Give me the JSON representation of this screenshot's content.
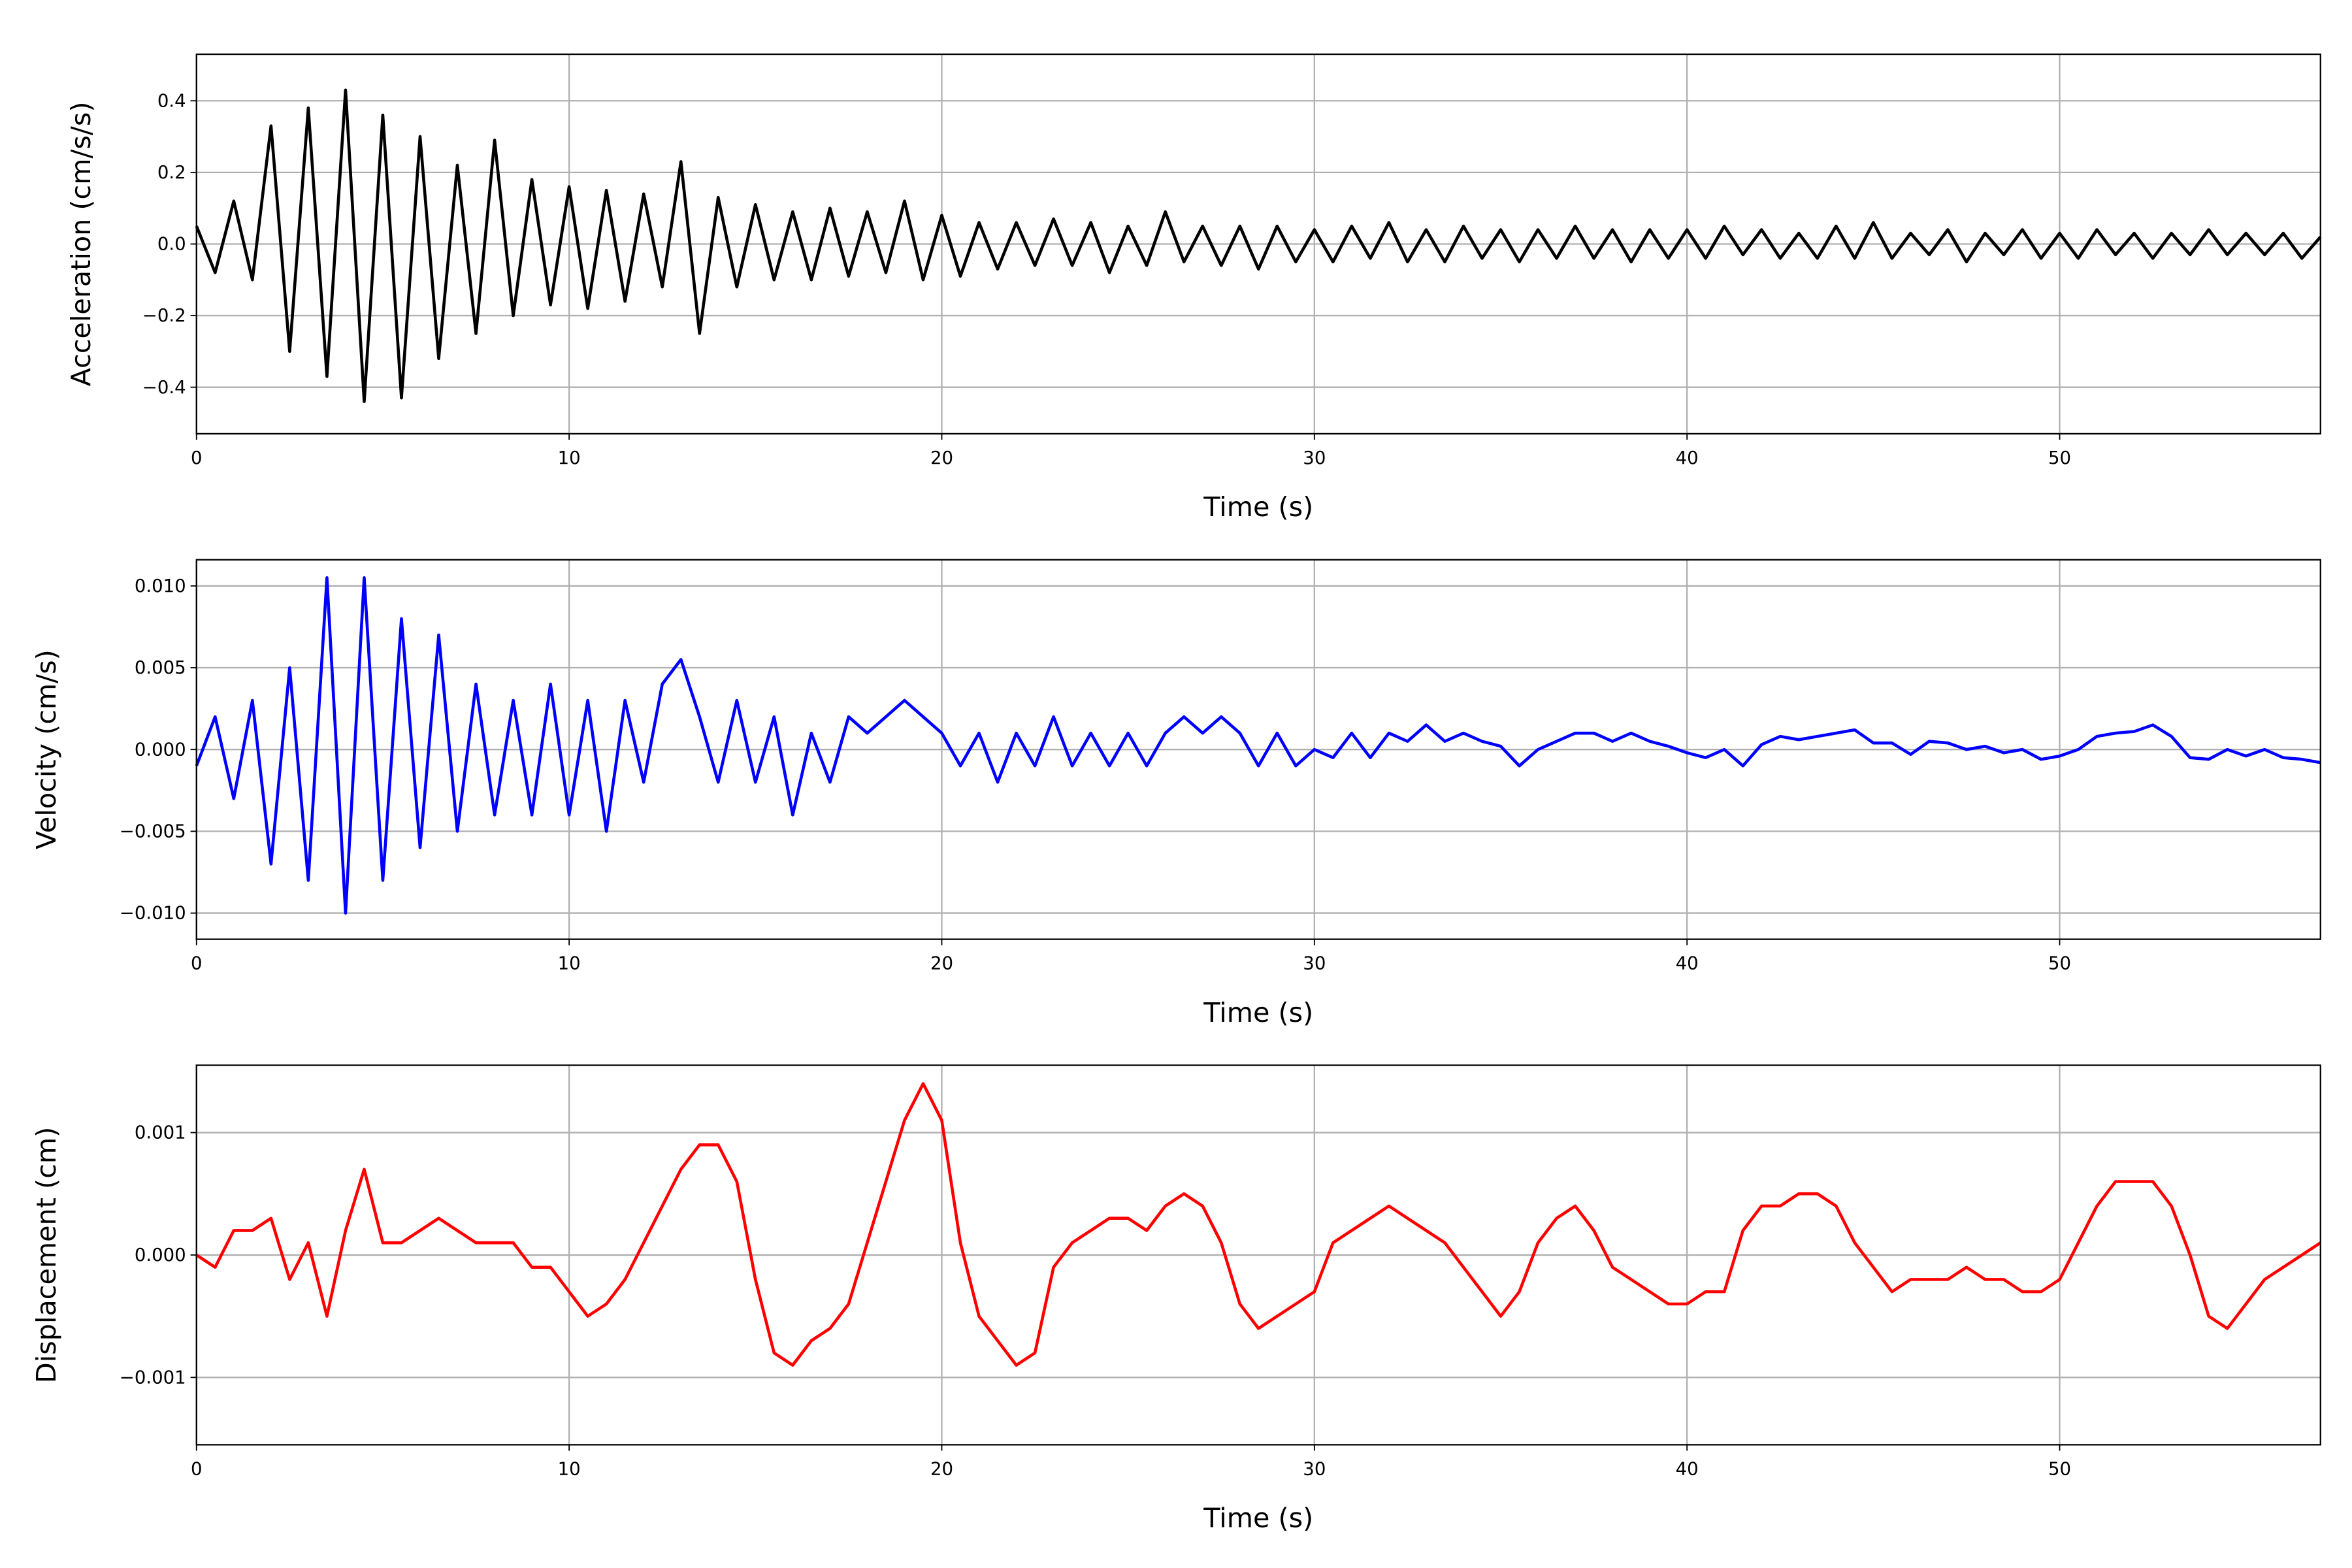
{
  "chart_data": [
    {
      "type": "line",
      "xlabel": "Time (s)",
      "ylabel": "Acceleration (cm/s/s)",
      "xlim": [
        0,
        57
      ],
      "xticks": [
        0,
        10,
        20,
        30,
        40,
        50
      ],
      "ylim": [
        -0.53,
        0.53
      ],
      "yticks": [
        {
          "value": -0.4,
          "label": "−0.4"
        },
        {
          "value": -0.2,
          "label": "−0.2"
        },
        {
          "value": 0,
          "label": "0.0"
        },
        0.2,
        0.4
      ],
      "grid": true,
      "x": [
        0,
        0.5,
        1,
        1.5,
        2,
        2.5,
        3,
        3.5,
        4,
        4.5,
        5,
        5.5,
        6,
        6.5,
        7,
        7.5,
        8,
        8.5,
        9,
        9.5,
        10,
        10.5,
        11,
        11.5,
        12,
        12.5,
        13,
        13.5,
        14,
        14.5,
        15,
        15.5,
        16,
        16.5,
        17,
        17.5,
        18,
        18.5,
        19,
        19.5,
        20,
        20.5,
        21,
        21.5,
        22,
        22.5,
        23,
        23.5,
        24,
        24.5,
        25,
        25.5,
        26,
        26.5,
        27,
        27.5,
        28,
        28.5,
        29,
        29.5,
        30,
        30.5,
        31,
        31.5,
        32,
        32.5,
        33,
        33.5,
        34,
        34.5,
        35,
        35.5,
        36,
        36.5,
        37,
        37.5,
        38,
        38.5,
        39,
        39.5,
        40,
        40.5,
        41,
        41.5,
        42,
        42.5,
        43,
        43.5,
        44,
        44.5,
        45,
        45.5,
        46,
        46.5,
        47,
        47.5,
        48,
        48.5,
        49,
        49.5,
        50,
        50.5,
        51,
        51.5,
        52,
        52.5,
        53,
        53.5,
        54,
        54.5,
        55,
        55.5,
        56,
        56.5,
        57
      ],
      "series": [
        {
          "color": "#000000",
          "values": [
            0.05,
            -0.08,
            0.12,
            -0.1,
            0.33,
            -0.3,
            0.38,
            -0.37,
            0.43,
            -0.44,
            0.36,
            -0.43,
            0.3,
            -0.32,
            0.22,
            -0.25,
            0.29,
            -0.2,
            0.18,
            -0.17,
            0.16,
            -0.18,
            0.15,
            -0.16,
            0.14,
            -0.12,
            0.23,
            -0.25,
            0.13,
            -0.12,
            0.11,
            -0.1,
            0.09,
            -0.1,
            0.1,
            -0.09,
            0.09,
            -0.08,
            0.12,
            -0.1,
            0.08,
            -0.09,
            0.06,
            -0.07,
            0.06,
            -0.06,
            0.07,
            -0.06,
            0.06,
            -0.08,
            0.05,
            -0.06,
            0.09,
            -0.05,
            0.05,
            -0.06,
            0.05,
            -0.07,
            0.05,
            -0.05,
            0.04,
            -0.05,
            0.05,
            -0.04,
            0.06,
            -0.05,
            0.04,
            -0.05,
            0.05,
            -0.04,
            0.04,
            -0.05,
            0.04,
            -0.04,
            0.05,
            -0.04,
            0.04,
            -0.05,
            0.04,
            -0.04,
            0.04,
            -0.04,
            0.05,
            -0.03,
            0.04,
            -0.04,
            0.03,
            -0.04,
            0.05,
            -0.04,
            0.06,
            -0.04,
            0.03,
            -0.03,
            0.04,
            -0.05,
            0.03,
            -0.03,
            0.04,
            -0.04,
            0.03,
            -0.04,
            0.04,
            -0.03,
            0.03,
            -0.04,
            0.03,
            -0.03,
            0.04,
            -0.03,
            0.03,
            -0.03,
            0.03,
            -0.04,
            0.02
          ]
        }
      ]
    },
    {
      "type": "line",
      "xlabel": "Time (s)",
      "ylabel": "Velocity (cm/s)",
      "xlim": [
        0,
        57
      ],
      "xticks": [
        0,
        10,
        20,
        30,
        40,
        50
      ],
      "ylim": [
        -0.0116,
        0.0116
      ],
      "yticks": [
        {
          "value": -0.01,
          "label": "−0.010"
        },
        {
          "value": -0.005,
          "label": "−0.005"
        },
        {
          "value": 0,
          "label": "0.000"
        },
        0.005,
        {
          "value": 0.01,
          "label": "0.010"
        }
      ],
      "grid": true,
      "x": [
        0,
        0.5,
        1,
        1.5,
        2,
        2.5,
        3,
        3.5,
        4,
        4.5,
        5,
        5.5,
        6,
        6.5,
        7,
        7.5,
        8,
        8.5,
        9,
        9.5,
        10,
        10.5,
        11,
        11.5,
        12,
        12.5,
        13,
        13.5,
        14,
        14.5,
        15,
        15.5,
        16,
        16.5,
        17,
        17.5,
        18,
        18.5,
        19,
        19.5,
        20,
        20.5,
        21,
        21.5,
        22,
        22.5,
        23,
        23.5,
        24,
        24.5,
        25,
        25.5,
        26,
        26.5,
        27,
        27.5,
        28,
        28.5,
        29,
        29.5,
        30,
        30.5,
        31,
        31.5,
        32,
        32.5,
        33,
        33.5,
        34,
        34.5,
        35,
        35.5,
        36,
        36.5,
        37,
        37.5,
        38,
        38.5,
        39,
        39.5,
        40,
        40.5,
        41,
        41.5,
        42,
        42.5,
        43,
        43.5,
        44,
        44.5,
        45,
        45.5,
        46,
        46.5,
        47,
        47.5,
        48,
        48.5,
        49,
        49.5,
        50,
        50.5,
        51,
        51.5,
        52,
        52.5,
        53,
        53.5,
        54,
        54.5,
        55,
        55.5,
        56,
        56.5,
        57
      ],
      "series": [
        {
          "color": "#0000ff",
          "values": [
            -0.001,
            0.002,
            -0.003,
            0.003,
            -0.007,
            0.005,
            -0.008,
            0.0105,
            -0.01,
            0.0105,
            -0.008,
            0.008,
            -0.006,
            0.007,
            -0.005,
            0.004,
            -0.004,
            0.003,
            -0.004,
            0.004,
            -0.004,
            0.003,
            -0.005,
            0.003,
            -0.002,
            0.004,
            0.0055,
            0.002,
            -0.002,
            0.003,
            -0.002,
            0.002,
            -0.004,
            0.001,
            -0.002,
            0.002,
            0.001,
            0.002,
            0.003,
            0.002,
            0.001,
            -0.001,
            0.001,
            -0.002,
            0.001,
            -0.001,
            0.002,
            -0.001,
            0.001,
            -0.001,
            0.001,
            -0.001,
            0.001,
            0.002,
            0.001,
            0.002,
            0.001,
            -0.001,
            0.001,
            -0.001,
            0,
            -0.0005,
            0.001,
            -0.0005,
            0.001,
            0.0005,
            0.0015,
            0.0005,
            0.001,
            0.0005,
            0.0002,
            -0.001,
            0,
            0.0005,
            0.001,
            0.001,
            0.0005,
            0.001,
            0.0005,
            0.0002,
            -0.0002,
            -0.0005,
            0,
            -0.001,
            0.0003,
            0.0008,
            0.0006,
            0.0008,
            0.001,
            0.0012,
            0.0004,
            0.0004,
            -0.0003,
            0.0005,
            0.0004,
            0,
            0.0002,
            -0.0002,
            0,
            -0.0006,
            -0.0004,
            0,
            0.0008,
            0.001,
            0.0011,
            0.0015,
            0.0008,
            -0.0005,
            -0.0006,
            0,
            -0.0004,
            0,
            -0.0005,
            -0.0006,
            -0.0008
          ]
        }
      ]
    },
    {
      "type": "line",
      "xlabel": "Time (s)",
      "ylabel": "Displacement (cm)",
      "xlim": [
        0,
        57
      ],
      "xticks": [
        0,
        10,
        20,
        30,
        40,
        50
      ],
      "ylim": [
        -0.00155,
        0.00155
      ],
      "yticks": [
        {
          "value": -0.001,
          "label": "−0.001"
        },
        {
          "value": 0,
          "label": "0.000"
        },
        0.001
      ],
      "grid": true,
      "x": [
        0,
        0.5,
        1,
        1.5,
        2,
        2.5,
        3,
        3.5,
        4,
        4.5,
        5,
        5.5,
        6,
        6.5,
        7,
        7.5,
        8,
        8.5,
        9,
        9.5,
        10,
        10.5,
        11,
        11.5,
        12,
        12.5,
        13,
        13.5,
        14,
        14.5,
        15,
        15.5,
        16,
        16.5,
        17,
        17.5,
        18,
        18.5,
        19,
        19.5,
        20,
        20.5,
        21,
        21.5,
        22,
        22.5,
        23,
        23.5,
        24,
        24.5,
        25,
        25.5,
        26,
        26.5,
        27,
        27.5,
        28,
        28.5,
        29,
        29.5,
        30,
        30.5,
        31,
        31.5,
        32,
        32.5,
        33,
        33.5,
        34,
        34.5,
        35,
        35.5,
        36,
        36.5,
        37,
        37.5,
        38,
        38.5,
        39,
        39.5,
        40,
        40.5,
        41,
        41.5,
        42,
        42.5,
        43,
        43.5,
        44,
        44.5,
        45,
        45.5,
        46,
        46.5,
        47,
        47.5,
        48,
        48.5,
        49,
        49.5,
        50,
        50.5,
        51,
        51.5,
        52,
        52.5,
        53,
        53.5,
        54,
        54.5,
        55,
        55.5,
        56,
        56.5,
        57
      ],
      "series": [
        {
          "color": "#ff0000",
          "values": [
            0,
            -0.0001,
            0.0002,
            0.0002,
            0.0003,
            -0.0002,
            0.0001,
            -0.0005,
            0.0002,
            0.0007,
            0.0001,
            0.0001,
            0.0002,
            0.0003,
            0.0002,
            0.0001,
            0.0001,
            0.0001,
            -0.0001,
            -0.0001,
            -0.0003,
            -0.0005,
            -0.0004,
            -0.0002,
            0.0001,
            0.0004,
            0.0007,
            0.0009,
            0.0009,
            0.0006,
            -0.0002,
            -0.0008,
            -0.0009,
            -0.0007,
            -0.0006,
            -0.0004,
            0.0001,
            0.0006,
            0.0011,
            0.0014,
            0.0011,
            0.0001,
            -0.0005,
            -0.0007,
            -0.0009,
            -0.0008,
            -0.0001,
            0.0001,
            0.0002,
            0.0003,
            0.0003,
            0.0002,
            0.0004,
            0.0005,
            0.0004,
            0.0001,
            -0.0004,
            -0.0006,
            -0.0005,
            -0.0004,
            -0.0003,
            0.0001,
            0.0002,
            0.0003,
            0.0004,
            0.0003,
            0.0002,
            0.0001,
            -0.0001,
            -0.0003,
            -0.0005,
            -0.0003,
            0.0001,
            0.0003,
            0.0004,
            0.0002,
            -0.0001,
            -0.0002,
            -0.0003,
            -0.0004,
            -0.0004,
            -0.0003,
            -0.0003,
            0.0002,
            0.0004,
            0.0004,
            0.0005,
            0.0005,
            0.0004,
            0.0001,
            -0.0001,
            -0.0003,
            -0.0002,
            -0.0002,
            -0.0002,
            -0.0001,
            -0.0002,
            -0.0002,
            -0.0003,
            -0.0003,
            -0.0002,
            0.0001,
            0.0004,
            0.0006,
            0.0006,
            0.0006,
            0.0004,
            0,
            -0.0005,
            -0.0006,
            -0.0004,
            -0.0002,
            -0.0001,
            0,
            0.0001
          ]
        }
      ]
    }
  ]
}
